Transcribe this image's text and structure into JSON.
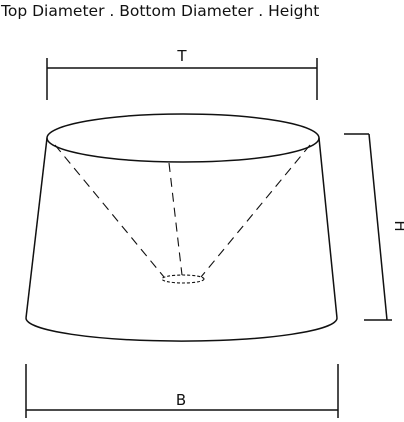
{
  "title": "Top Diameter . Bottom Diameter . Height",
  "labels": {
    "top": "T",
    "bottom": "B",
    "height": "H"
  },
  "colors": {
    "line": "#111111",
    "background": "#ffffff"
  }
}
